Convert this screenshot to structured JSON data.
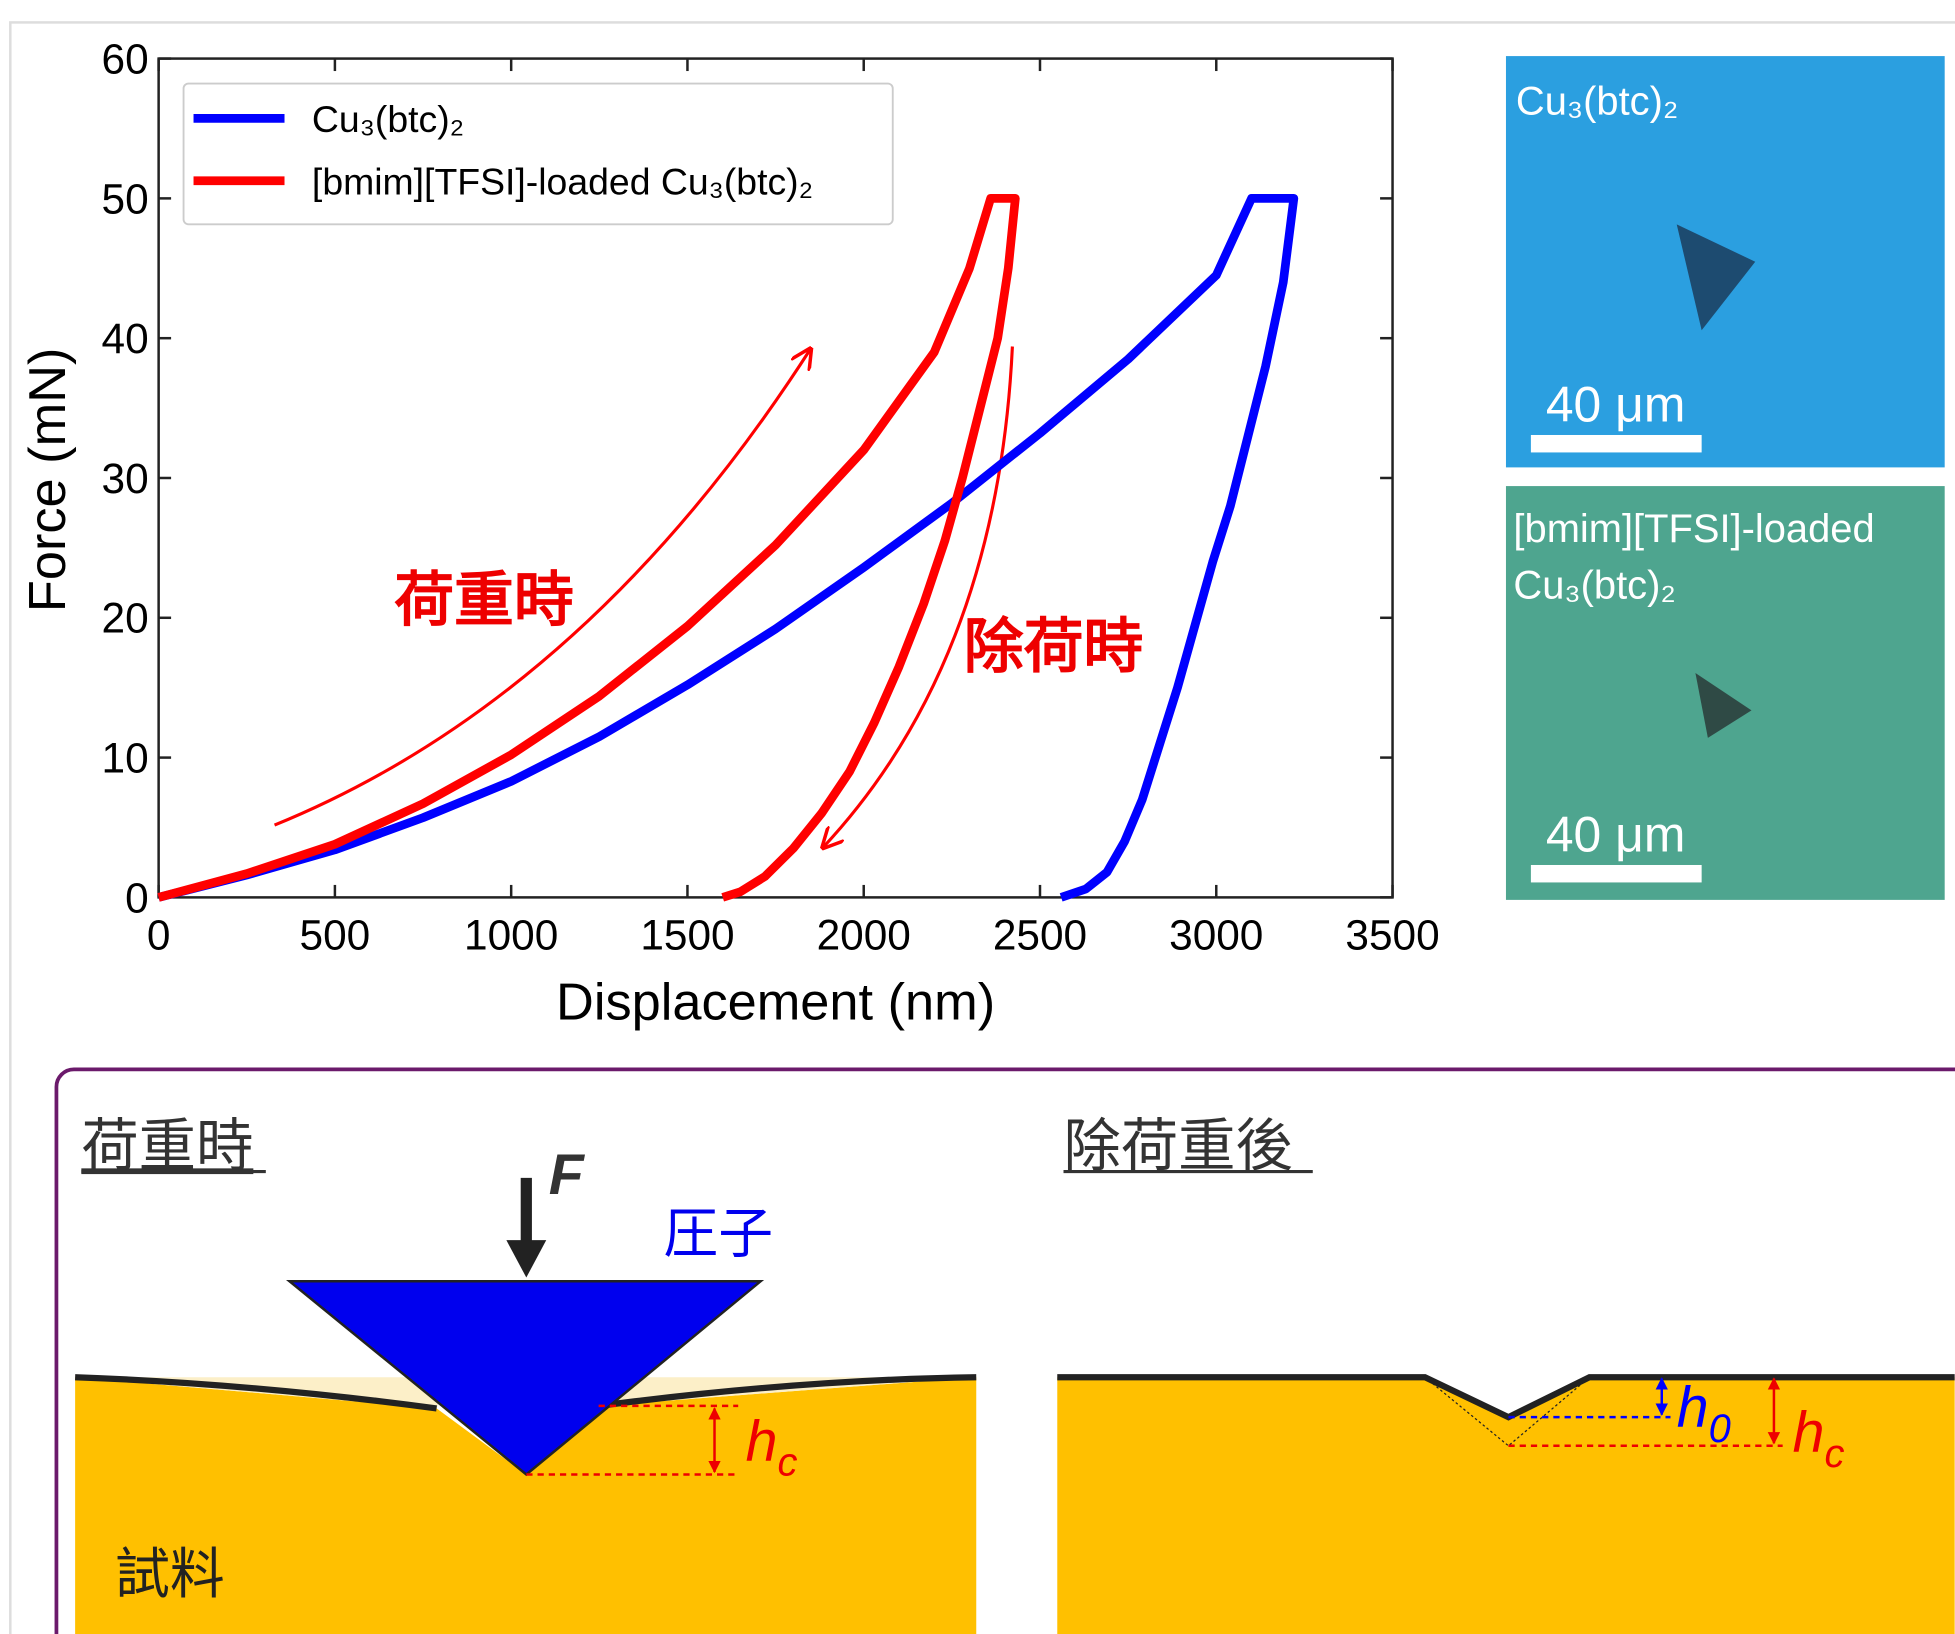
{
  "chart_data": {
    "type": "line",
    "x_label": "Displacement (nm)",
    "y_label": "Force (mN)",
    "xlim": [
      0,
      3500
    ],
    "xticks": [
      0,
      500,
      1000,
      1500,
      2000,
      2500,
      3000,
      3500
    ],
    "ylim": [
      0,
      60
    ],
    "yticks": [
      0,
      10,
      20,
      30,
      40,
      50,
      60
    ],
    "grid": false,
    "legend": "upper left",
    "annotations": [
      "荷重時",
      "除荷時"
    ],
    "series": [
      {
        "name": "Cu₃(btc)₂",
        "color": "#0000ff",
        "x": [
          0,
          250,
          500,
          750,
          1000,
          1250,
          1500,
          1750,
          2000,
          2250,
          2500,
          2750,
          3000,
          3100,
          3220,
          3190,
          3140,
          3090,
          3040,
          2990,
          2940,
          2890,
          2840,
          2790,
          2740,
          2690,
          2630,
          2560
        ],
        "values": [
          0,
          1.6,
          3.4,
          5.7,
          8.3,
          11.5,
          15.2,
          19.2,
          23.6,
          28.2,
          33.2,
          38.5,
          44.5,
          50,
          50,
          44,
          38,
          33,
          28,
          24,
          19.5,
          15,
          11,
          7,
          4,
          1.8,
          0.6,
          0
        ]
      },
      {
        "name": "[bmim][TFSI]-loaded Cu₃(btc)₂",
        "color": "#ff0000",
        "x": [
          0,
          250,
          500,
          750,
          1000,
          1250,
          1500,
          1750,
          2000,
          2200,
          2300,
          2360,
          2430,
          2410,
          2380,
          2330,
          2280,
          2230,
          2170,
          2100,
          2030,
          1960,
          1880,
          1800,
          1720,
          1650,
          1600
        ],
        "values": [
          0,
          1.7,
          3.8,
          6.7,
          10.2,
          14.4,
          19.4,
          25.2,
          32,
          39,
          45,
          50,
          50,
          45,
          40,
          35,
          30,
          25.5,
          21,
          16.5,
          12.5,
          9,
          6,
          3.5,
          1.5,
          0.4,
          0
        ]
      }
    ]
  },
  "micrographs": [
    {
      "label_lines": [
        "Cu₃(btc)₂"
      ],
      "scale_bar": "40 μm"
    },
    {
      "label_lines": [
        "[bmim][TFSI]-loaded",
        "Cu₃(btc)₂"
      ],
      "scale_bar": "40 μm"
    }
  ],
  "diagram": {
    "loading": {
      "title": "荷重時",
      "force": "F",
      "indenter": "圧子",
      "sample": "試料",
      "hc": {
        "symbol": "h",
        "subscript": "c"
      }
    },
    "unloaded": {
      "title": "除荷重後",
      "h0": {
        "symbol": "h",
        "subscript": "0"
      },
      "hc": {
        "symbol": "h",
        "subscript": "c"
      }
    }
  }
}
